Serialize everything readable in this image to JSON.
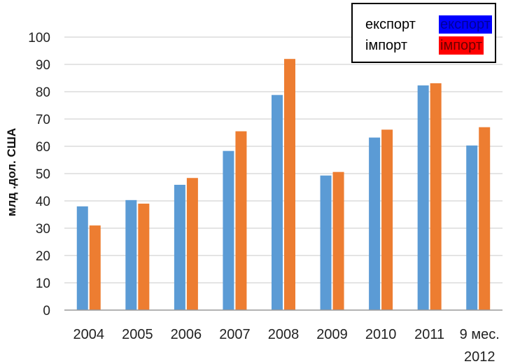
{
  "chart_data": {
    "type": "bar",
    "title": "",
    "xlabel": "",
    "ylabel": "млд .дол. США",
    "ylim": [
      0,
      100
    ],
    "yticks": [
      0,
      10,
      20,
      30,
      40,
      50,
      60,
      70,
      80,
      90,
      100
    ],
    "grid": true,
    "legend_position": "top-right",
    "categories": [
      "2004",
      "2005",
      "2006",
      "2007",
      "2008",
      "2009",
      "2010",
      "2011",
      "9 мес. 2012"
    ],
    "category_lines": [
      [
        "2004"
      ],
      [
        "2005"
      ],
      [
        "2006"
      ],
      [
        "2007"
      ],
      [
        "2008"
      ],
      [
        "2009"
      ],
      [
        "2010"
      ],
      [
        "2011"
      ],
      [
        "9 мес.",
        "2012"
      ]
    ],
    "series": [
      {
        "name": "експорт",
        "color": "#5b9bd5",
        "values": [
          38.0,
          40.3,
          45.9,
          58.3,
          78.8,
          49.3,
          63.2,
          82.3,
          60.3
        ]
      },
      {
        "name": "імпорт",
        "color": "#ed7d31",
        "values": [
          31.0,
          39.0,
          48.4,
          65.5,
          92.0,
          50.6,
          66.1,
          83.1,
          67.0
        ]
      }
    ],
    "legend": [
      {
        "label": "експорт",
        "swatch_label": "експорт",
        "swatch_color": "#0000ff",
        "swatch_text_color": "#00009a"
      },
      {
        "label": "імпорт",
        "swatch_label": "імпорт",
        "swatch_color": "#ff0000",
        "swatch_text_color": "#6a0000"
      }
    ]
  }
}
